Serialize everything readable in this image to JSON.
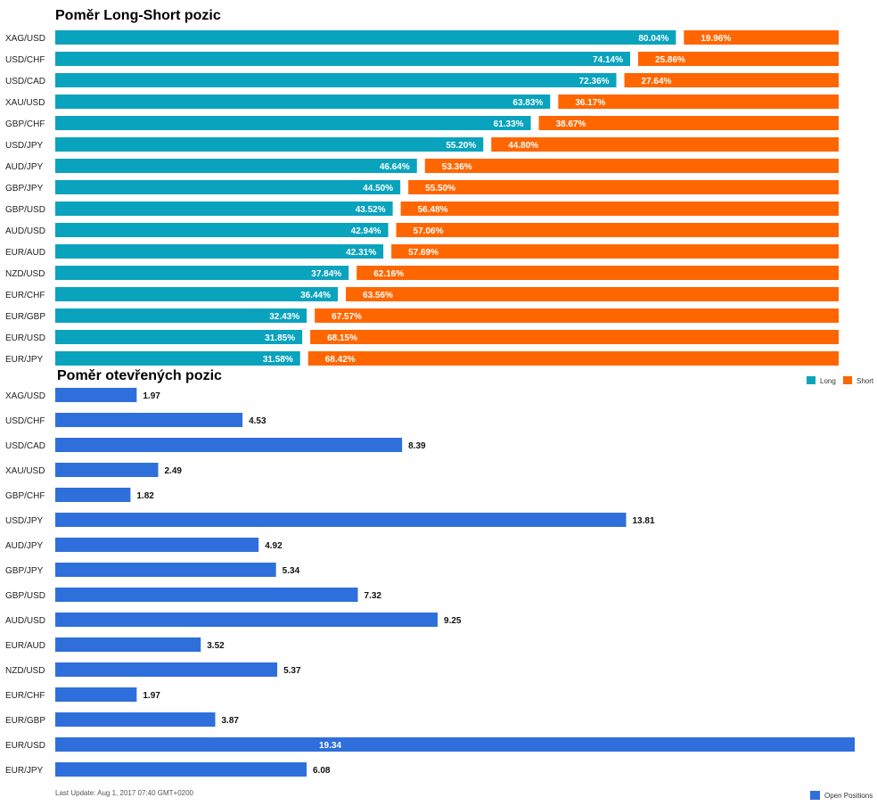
{
  "page": {
    "title_ratio": "Poměr Long-Short pozic",
    "title_open": "Poměr otevřených pozic",
    "last_update": "Last Update: Aug 1, 2017 07:40 GMT+0200"
  },
  "colors": {
    "long": "#0aa3bd",
    "short": "#ff6600",
    "open": "#2f6fdc"
  },
  "chart_data": [
    {
      "type": "bar",
      "stacked": true,
      "orientation": "horizontal",
      "title": "Poměr Long-Short pozic",
      "categories": [
        "XAG/USD",
        "USD/CHF",
        "USD/CAD",
        "XAU/USD",
        "GBP/CHF",
        "USD/JPY",
        "AUD/JPY",
        "GBP/JPY",
        "GBP/USD",
        "AUD/USD",
        "EUR/AUD",
        "NZD/USD",
        "EUR/CHF",
        "EUR/GBP",
        "EUR/USD",
        "EUR/JPY"
      ],
      "series": [
        {
          "name": "Long",
          "values": [
            80.04,
            74.14,
            72.36,
            63.83,
            61.33,
            55.2,
            46.64,
            44.5,
            43.52,
            42.94,
            42.31,
            37.84,
            36.44,
            32.43,
            31.85,
            31.58
          ],
          "labels": [
            "80.04%",
            "74.14%",
            "72.36%",
            "63.83%",
            "61.33%",
            "55.20%",
            "46.64%",
            "44.50%",
            "43.52%",
            "42.94%",
            "42.31%",
            "37.84%",
            "36.44%",
            "32.43%",
            "31.85%",
            "31.58%"
          ]
        },
        {
          "name": "Short",
          "values": [
            19.96,
            25.86,
            27.64,
            36.17,
            38.67,
            44.8,
            53.36,
            55.5,
            56.48,
            57.06,
            57.69,
            62.16,
            63.56,
            67.57,
            68.15,
            68.42
          ],
          "labels": [
            "19.96%",
            "25.86%",
            "27.64%",
            "36.17%",
            "38.67%",
            "44.80%",
            "53.36%",
            "55.50%",
            "56.48%",
            "57.06%",
            "57.69%",
            "62.16%",
            "63.56%",
            "67.57%",
            "68.15%",
            "68.42%"
          ]
        }
      ],
      "xlim": [
        0,
        100
      ],
      "legend": "bottom-right"
    },
    {
      "type": "bar",
      "orientation": "horizontal",
      "title": "Poměr otevřených pozic",
      "categories": [
        "XAG/USD",
        "USD/CHF",
        "USD/CAD",
        "XAU/USD",
        "GBP/CHF",
        "USD/JPY",
        "AUD/JPY",
        "GBP/JPY",
        "GBP/USD",
        "AUD/USD",
        "EUR/AUD",
        "NZD/USD",
        "EUR/CHF",
        "EUR/GBP",
        "EUR/USD",
        "EUR/JPY"
      ],
      "series": [
        {
          "name": "Open Positions",
          "values": [
            1.97,
            4.53,
            8.39,
            2.49,
            1.82,
            13.81,
            4.92,
            5.34,
            7.32,
            9.25,
            3.52,
            5.37,
            1.97,
            3.87,
            19.34,
            6.08
          ],
          "labels": [
            "1.97",
            "4.53",
            "8.39",
            "2.49",
            "1.82",
            "13.81",
            "4.92",
            "5.34",
            "7.32",
            "9.25",
            "3.52",
            "5.37",
            "1.97",
            "3.87",
            "19.34",
            "6.08"
          ]
        }
      ],
      "xlim": [
        0,
        19.34
      ],
      "legend": "bottom-right"
    }
  ]
}
